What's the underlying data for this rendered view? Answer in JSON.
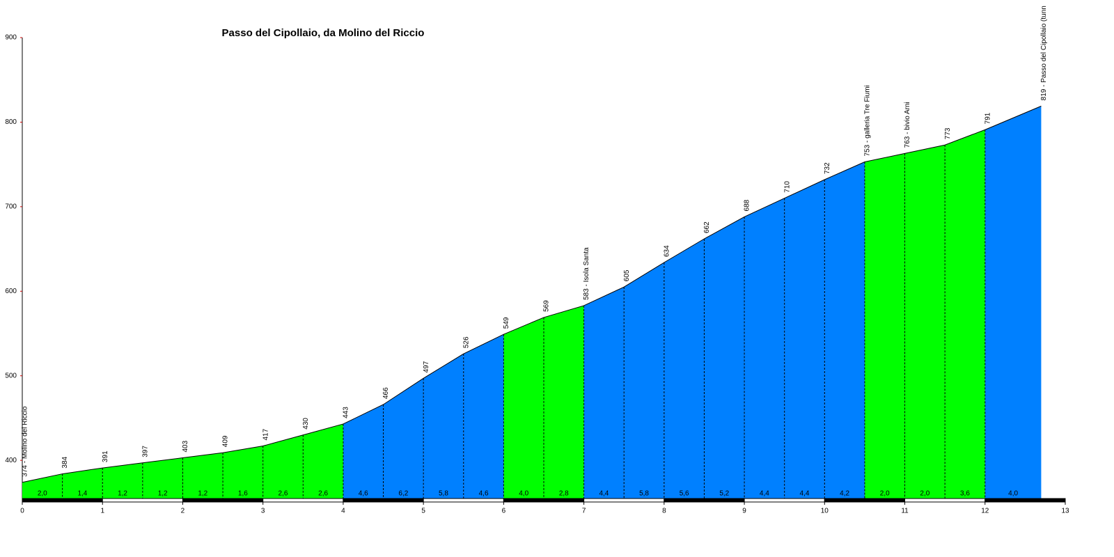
{
  "chart_data": {
    "type": "area",
    "title": "Passo del Cipollaio, da Molino del Riccio",
    "x": [
      0,
      0.5,
      1,
      1.5,
      2,
      2.5,
      3,
      3.5,
      4,
      4.5,
      5,
      5.5,
      6,
      6.5,
      7,
      7.5,
      8,
      8.5,
      9,
      9.5,
      10,
      10.5,
      11,
      11.5,
      12,
      12.7
    ],
    "values": [
      374,
      384,
      391,
      397,
      403,
      409,
      417,
      430,
      443,
      466,
      497,
      526,
      549,
      569,
      583,
      605,
      634,
      662,
      688,
      710,
      732,
      753,
      763,
      773,
      791,
      819
    ],
    "value_labels": [
      "374 - Molino del Riccio",
      "384",
      "391",
      "397",
      "403",
      "409",
      "417",
      "430",
      "443",
      "466",
      "497",
      "526",
      "549",
      "569",
      "583 - Isola Santa",
      "605",
      "634",
      "662",
      "688",
      "710",
      "732",
      "753 - galleria Tre Fiumi",
      "763 - bivio Arni",
      "773",
      "791",
      "819 - Passo del Cipollaio (tunn"
    ],
    "segments": {
      "values": [
        2.0,
        1.4,
        1.2,
        1.2,
        1.2,
        1.6,
        2.6,
        2.6,
        4.6,
        6.2,
        5.8,
        4.6,
        4.0,
        2.8,
        4.4,
        5.8,
        5.6,
        5.2,
        4.4,
        4.4,
        4.2,
        2.0,
        2.0,
        3.6,
        4.0
      ],
      "value_labels": [
        "2,0",
        "1,4",
        "1,2",
        "1,2",
        "1,2",
        "1,6",
        "2,6",
        "2,6",
        "4,6",
        "6,2",
        "5,8",
        "4,6",
        "4,0",
        "2,8",
        "4,4",
        "5,8",
        "5,6",
        "5,2",
        "4,4",
        "4,4",
        "4,2",
        "2,0",
        "2,0",
        "3,6",
        "4,0"
      ],
      "colors": [
        "#00ff00",
        "#00ff00",
        "#00ff00",
        "#00ff00",
        "#00ff00",
        "#00ff00",
        "#00ff00",
        "#00ff00",
        "#0080ff",
        "#0080ff",
        "#0080ff",
        "#0080ff",
        "#00ff00",
        "#00ff00",
        "#0080ff",
        "#0080ff",
        "#0080ff",
        "#0080ff",
        "#0080ff",
        "#0080ff",
        "#0080ff",
        "#00ff00",
        "#00ff00",
        "#00ff00",
        "#0080ff"
      ]
    },
    "xlim": [
      0,
      13
    ],
    "xticks": [
      0,
      1,
      2,
      3,
      4,
      5,
      6,
      7,
      8,
      9,
      10,
      11,
      12,
      13
    ],
    "ylim": [
      354,
      900
    ],
    "yticks": [
      400,
      500,
      600,
      700,
      800,
      900
    ],
    "grid": false
  }
}
